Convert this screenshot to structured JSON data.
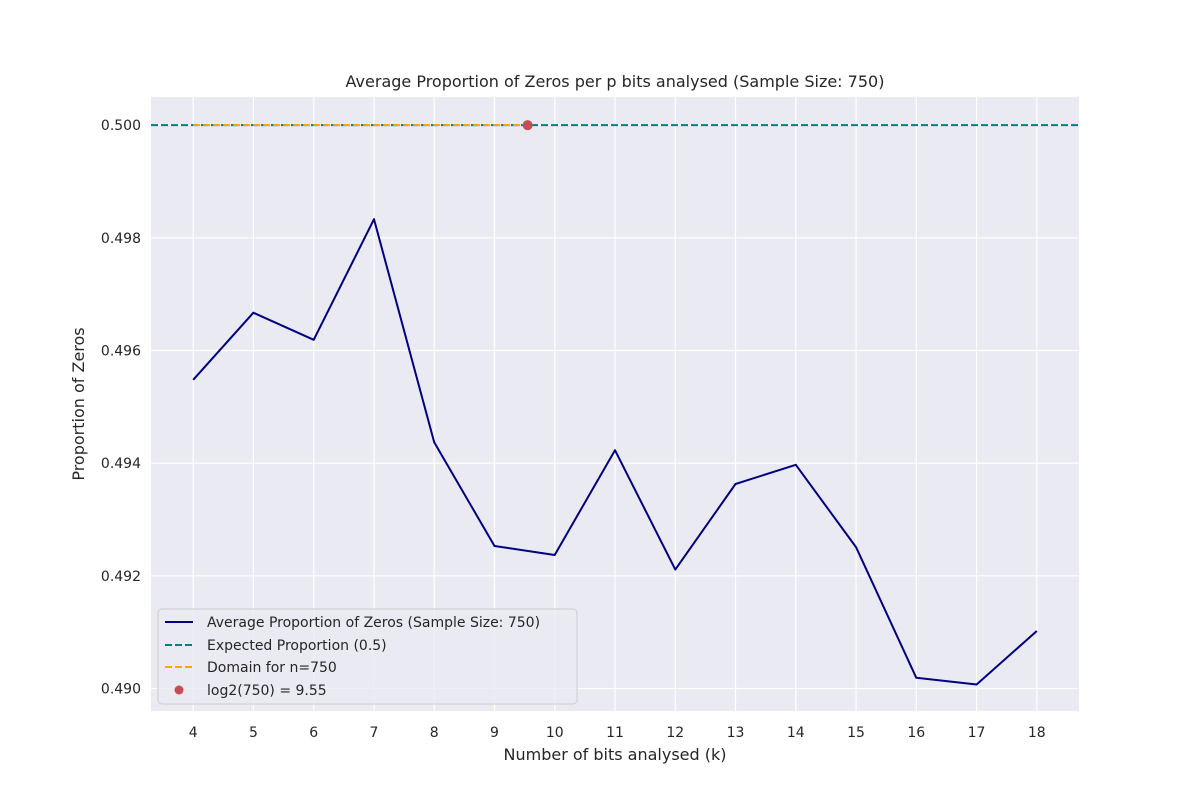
{
  "chart_data": {
    "type": "line",
    "title": "Average Proportion of Zeros per p bits analysed (Sample Size: 750)",
    "xlabel": "Number of bits analysed (k)",
    "ylabel": "Proportion of Zeros",
    "xlim": [
      3.3,
      18.7
    ],
    "ylim": [
      0.4896,
      0.5005
    ],
    "x_ticks": [
      4,
      5,
      6,
      7,
      8,
      9,
      10,
      11,
      12,
      13,
      14,
      15,
      16,
      17,
      18
    ],
    "y_ticks": [
      0.49,
      0.492,
      0.494,
      0.496,
      0.498,
      0.5
    ],
    "y_tick_labels": [
      "0.490",
      "0.492",
      "0.494",
      "0.496",
      "0.498",
      "0.500"
    ],
    "grid": true,
    "legend_position": "lower-left",
    "series": [
      {
        "name": "Average Proportion of Zeros (Sample Size: 750)",
        "kind": "line",
        "color": "#000080",
        "x": [
          4,
          5,
          6,
          7,
          8,
          9,
          10,
          11,
          12,
          13,
          14,
          15,
          16,
          17,
          18
        ],
        "values": [
          0.49548,
          0.49667,
          0.49619,
          0.49833,
          0.49437,
          0.49253,
          0.49237,
          0.49423,
          0.49211,
          0.49363,
          0.49397,
          0.49251,
          0.49019,
          0.49007,
          0.49102
        ]
      },
      {
        "name": "Expected Proportion (0.5)",
        "kind": "hline",
        "color": "#008080",
        "y": 0.5
      },
      {
        "name": "Domain for n=750",
        "kind": "segment",
        "color": "#FFA500",
        "x": [
          4,
          9.55
        ],
        "values": [
          0.5,
          0.5
        ]
      },
      {
        "name": "log2(750) = 9.55",
        "kind": "point",
        "color": "#C44E52",
        "x": [
          9.55
        ],
        "values": [
          0.5
        ]
      }
    ]
  },
  "colors": {
    "plot_background": "#EAEAF2",
    "grid": "#FFFFFF",
    "text": "#262626"
  }
}
